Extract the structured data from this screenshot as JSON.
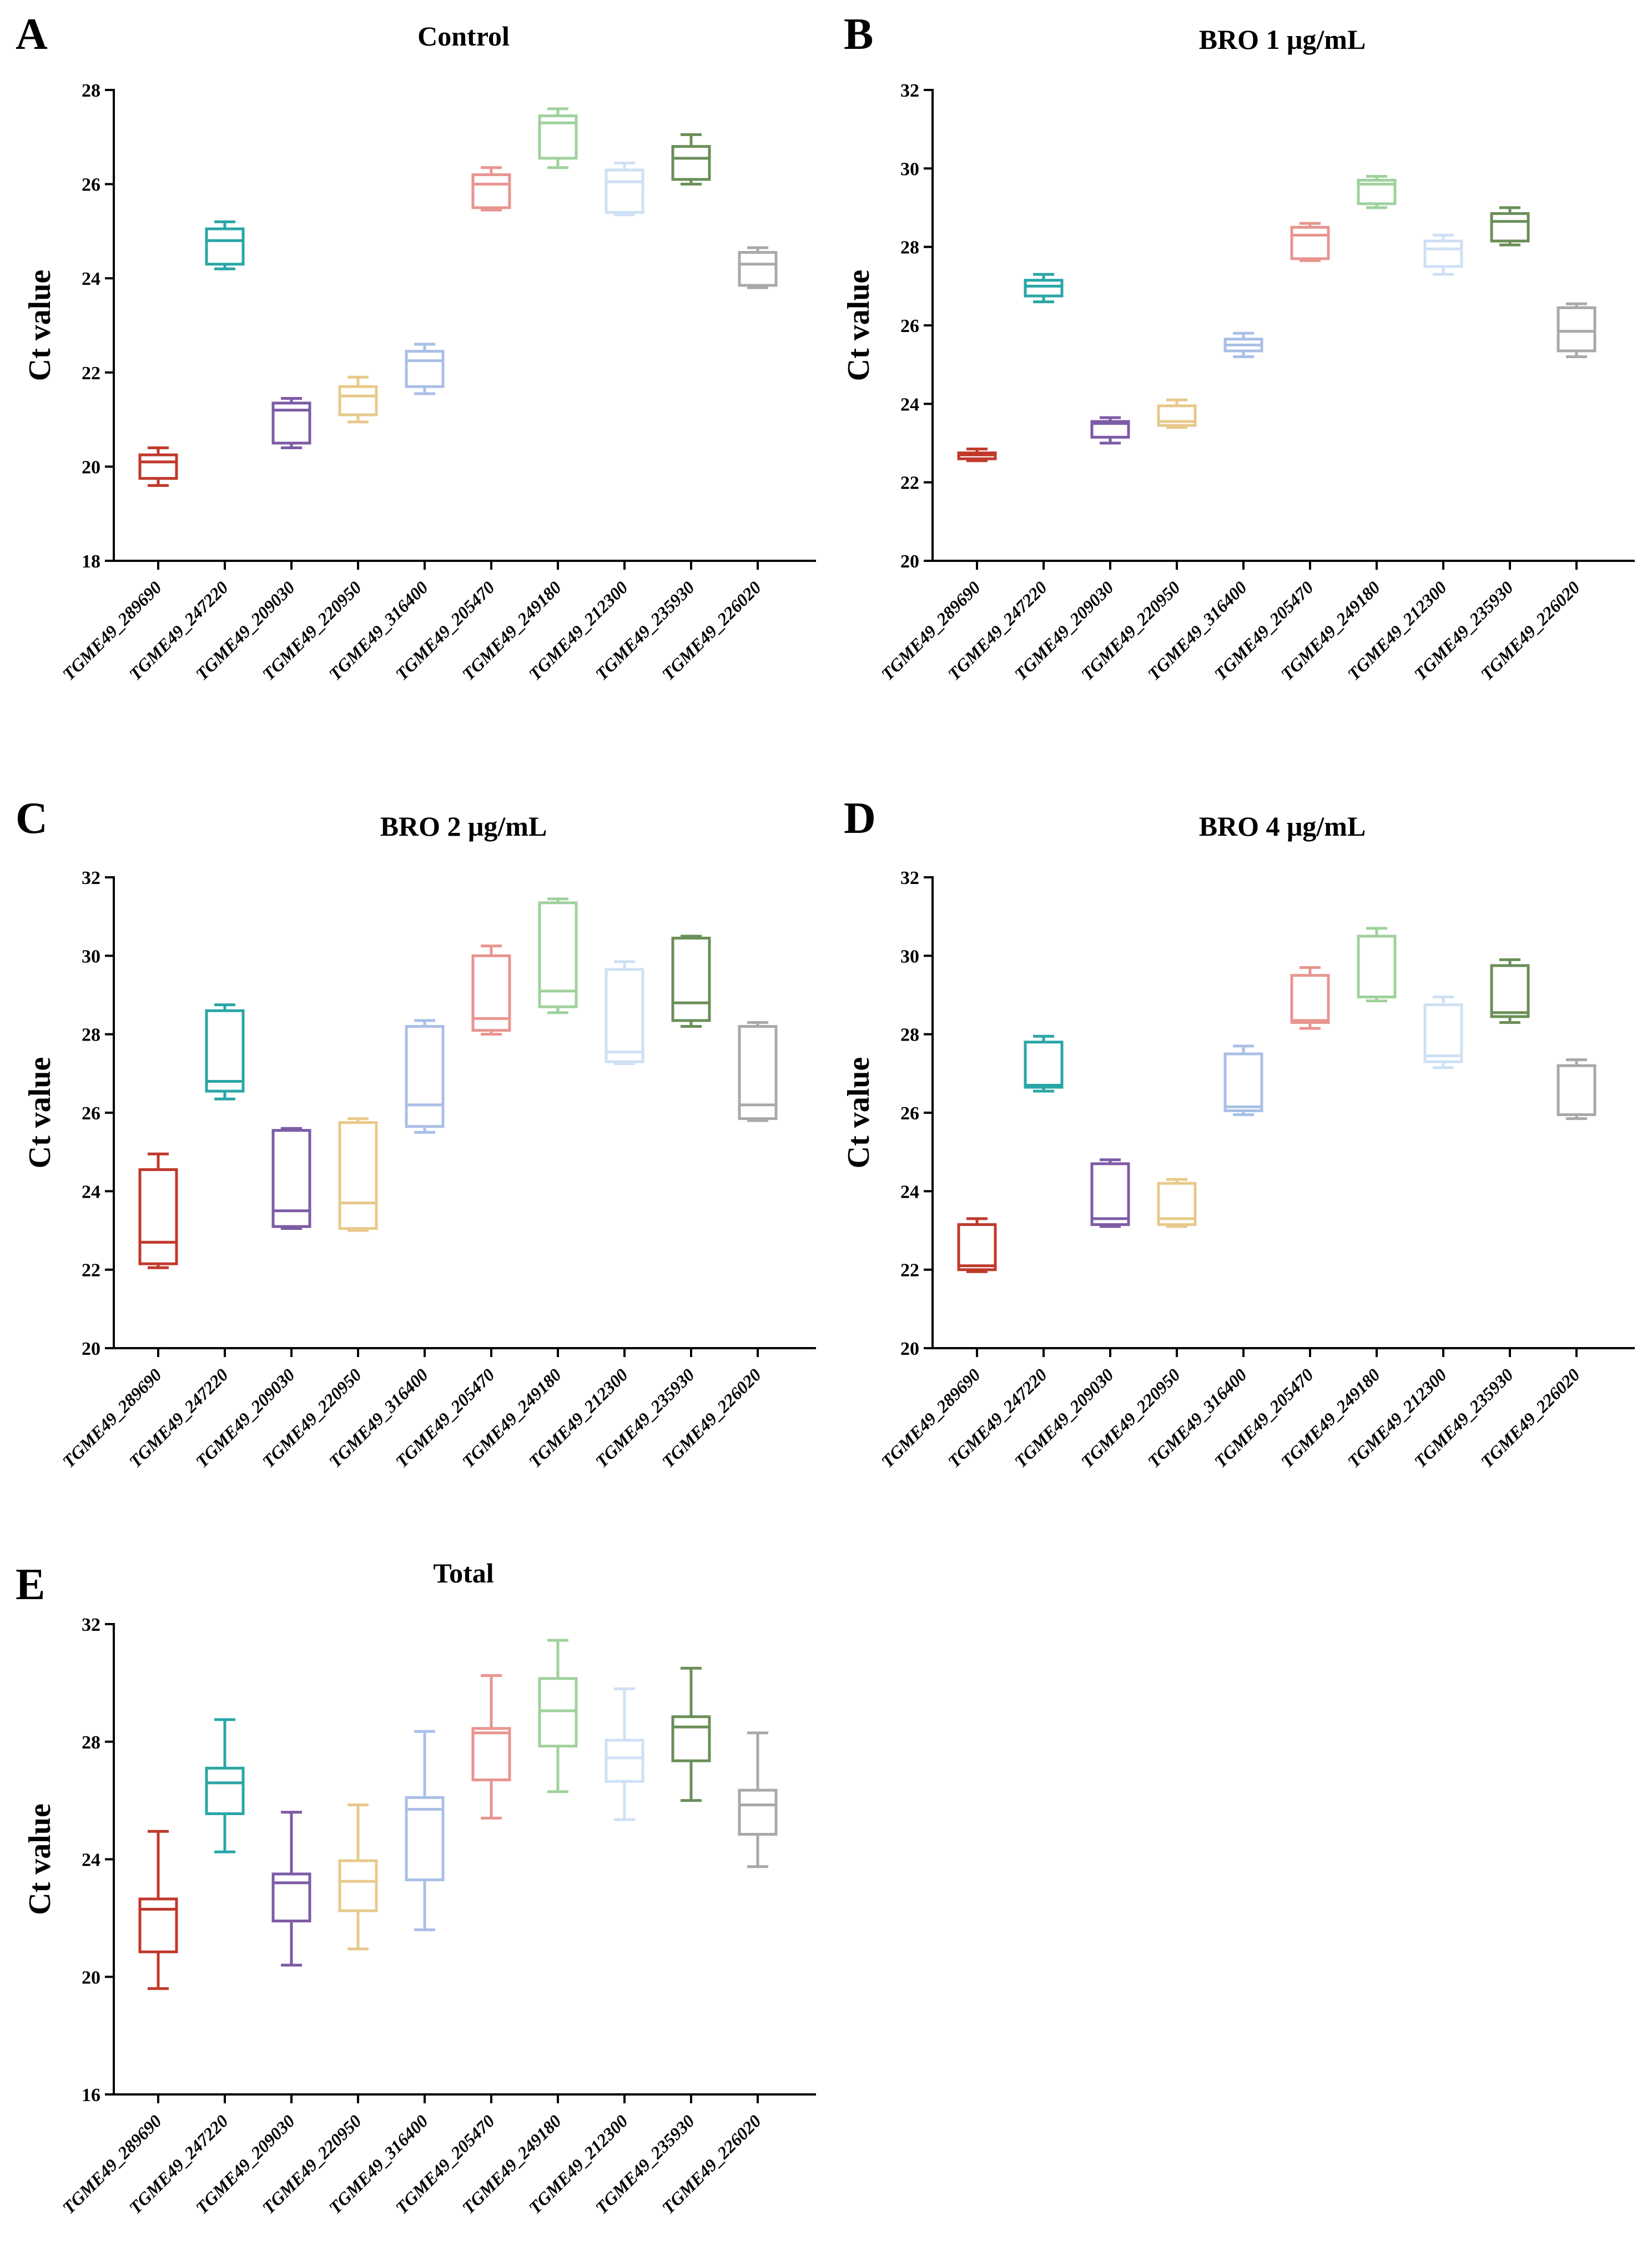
{
  "figure": {
    "categories": [
      "TGME49_289690",
      "TGME49_247220",
      "TGME49_209030",
      "TGME49_220950",
      "TGME49_316400",
      "TGME49_205470",
      "TGME49_249180",
      "TGME49_212300",
      "TGME49_235930",
      "TGME49_226020"
    ],
    "colors": [
      "#c0392b",
      "#2aa6a6",
      "#7d5ba6",
      "#e8c98b",
      "#a9bfe6",
      "#e8958f",
      "#9fd19c",
      "#cfe0f5",
      "#6a8f58",
      "#a9a9a9"
    ],
    "ylabel": "Ct value"
  },
  "chart_data": [
    {
      "type": "box",
      "letter": "A",
      "title": "Control",
      "ylabel": "Ct value",
      "ylim": [
        18,
        28
      ],
      "yticks": [
        18,
        20,
        22,
        24,
        26,
        28
      ],
      "boxes": [
        {
          "min": 19.6,
          "q1": 19.75,
          "median": 20.1,
          "q3": 20.25,
          "max": 20.4
        },
        {
          "min": 24.2,
          "q1": 24.3,
          "median": 24.8,
          "q3": 25.05,
          "max": 25.2
        },
        {
          "min": 20.4,
          "q1": 20.5,
          "median": 21.2,
          "q3": 21.35,
          "max": 21.45
        },
        {
          "min": 20.95,
          "q1": 21.1,
          "median": 21.5,
          "q3": 21.7,
          "max": 21.9
        },
        {
          "min": 21.55,
          "q1": 21.7,
          "median": 22.25,
          "q3": 22.45,
          "max": 22.6
        },
        {
          "min": 25.45,
          "q1": 25.5,
          "median": 26.0,
          "q3": 26.2,
          "max": 26.35
        },
        {
          "min": 26.35,
          "q1": 26.55,
          "median": 27.3,
          "q3": 27.45,
          "max": 27.6
        },
        {
          "min": 25.35,
          "q1": 25.4,
          "median": 26.05,
          "q3": 26.3,
          "max": 26.45
        },
        {
          "min": 26.0,
          "q1": 26.1,
          "median": 26.55,
          "q3": 26.8,
          "max": 27.05
        },
        {
          "min": 23.8,
          "q1": 23.85,
          "median": 24.3,
          "q3": 24.55,
          "max": 24.65
        }
      ]
    },
    {
      "type": "box",
      "letter": "B",
      "title": "BRO 1 μg/mL",
      "ylabel": "Ct value",
      "ylim": [
        20,
        32
      ],
      "yticks": [
        20,
        22,
        24,
        26,
        28,
        30,
        32
      ],
      "boxes": [
        {
          "min": 22.55,
          "q1": 22.6,
          "median": 22.7,
          "q3": 22.75,
          "max": 22.85
        },
        {
          "min": 26.6,
          "q1": 26.75,
          "median": 27.0,
          "q3": 27.15,
          "max": 27.3
        },
        {
          "min": 23.0,
          "q1": 23.15,
          "median": 23.5,
          "q3": 23.55,
          "max": 23.65
        },
        {
          "min": 23.4,
          "q1": 23.45,
          "median": 23.55,
          "q3": 23.95,
          "max": 24.1
        },
        {
          "min": 25.2,
          "q1": 25.35,
          "median": 25.5,
          "q3": 25.65,
          "max": 25.8
        },
        {
          "min": 27.65,
          "q1": 27.7,
          "median": 28.3,
          "q3": 28.5,
          "max": 28.6
        },
        {
          "min": 29.0,
          "q1": 29.1,
          "median": 29.6,
          "q3": 29.7,
          "max": 29.8
        },
        {
          "min": 27.3,
          "q1": 27.5,
          "median": 27.95,
          "q3": 28.15,
          "max": 28.3
        },
        {
          "min": 28.05,
          "q1": 28.15,
          "median": 28.65,
          "q3": 28.85,
          "max": 29.0
        },
        {
          "min": 25.2,
          "q1": 25.35,
          "median": 25.85,
          "q3": 26.45,
          "max": 26.55
        }
      ]
    },
    {
      "type": "box",
      "letter": "C",
      "title": "BRO 2 μg/mL",
      "ylabel": "Ct value",
      "ylim": [
        20,
        32
      ],
      "yticks": [
        20,
        22,
        24,
        26,
        28,
        30,
        32
      ],
      "boxes": [
        {
          "min": 22.05,
          "q1": 22.15,
          "median": 22.7,
          "q3": 24.55,
          "max": 24.95
        },
        {
          "min": 26.35,
          "q1": 26.55,
          "median": 26.8,
          "q3": 28.6,
          "max": 28.75
        },
        {
          "min": 23.05,
          "q1": 23.1,
          "median": 23.5,
          "q3": 25.55,
          "max": 25.6
        },
        {
          "min": 23.0,
          "q1": 23.05,
          "median": 23.7,
          "q3": 25.75,
          "max": 25.85
        },
        {
          "min": 25.5,
          "q1": 25.65,
          "median": 26.2,
          "q3": 28.2,
          "max": 28.35
        },
        {
          "min": 28.0,
          "q1": 28.1,
          "median": 28.4,
          "q3": 30.0,
          "max": 30.25
        },
        {
          "min": 28.55,
          "q1": 28.7,
          "median": 29.1,
          "q3": 31.35,
          "max": 31.45
        },
        {
          "min": 27.25,
          "q1": 27.3,
          "median": 27.55,
          "q3": 29.65,
          "max": 29.85
        },
        {
          "min": 28.2,
          "q1": 28.35,
          "median": 28.8,
          "q3": 30.45,
          "max": 30.5
        },
        {
          "min": 25.8,
          "q1": 25.85,
          "median": 26.2,
          "q3": 28.2,
          "max": 28.3
        }
      ]
    },
    {
      "type": "box",
      "letter": "D",
      "title": "BRO 4 μg/mL",
      "ylabel": "Ct value",
      "ylim": [
        20,
        32
      ],
      "yticks": [
        20,
        22,
        24,
        26,
        28,
        30,
        32
      ],
      "boxes": [
        {
          "min": 21.95,
          "q1": 22.0,
          "median": 22.1,
          "q3": 23.15,
          "max": 23.3
        },
        {
          "min": 26.55,
          "q1": 26.65,
          "median": 26.7,
          "q3": 27.8,
          "max": 27.95
        },
        {
          "min": 23.1,
          "q1": 23.15,
          "median": 23.3,
          "q3": 24.7,
          "max": 24.8
        },
        {
          "min": 23.1,
          "q1": 23.15,
          "median": 23.3,
          "q3": 24.2,
          "max": 24.3
        },
        {
          "min": 25.95,
          "q1": 26.05,
          "median": 26.15,
          "q3": 27.5,
          "max": 27.7
        },
        {
          "min": 28.15,
          "q1": 28.3,
          "median": 28.35,
          "q3": 29.5,
          "max": 29.7
        },
        {
          "min": 28.85,
          "q1": 28.95,
          "median": 28.95,
          "q3": 30.5,
          "max": 30.7
        },
        {
          "min": 27.15,
          "q1": 27.3,
          "median": 27.45,
          "q3": 28.75,
          "max": 28.95
        },
        {
          "min": 28.3,
          "q1": 28.45,
          "median": 28.55,
          "q3": 29.75,
          "max": 29.9
        },
        {
          "min": 25.85,
          "q1": 25.95,
          "median": 25.95,
          "q3": 27.2,
          "max": 27.35
        }
      ]
    },
    {
      "type": "box",
      "letter": "E",
      "title": "Total",
      "ylabel": "Ct value",
      "ylim": [
        16,
        32
      ],
      "yticks": [
        16,
        20,
        24,
        28,
        32
      ],
      "boxes": [
        {
          "min": 19.6,
          "q1": 20.85,
          "median": 22.3,
          "q3": 22.65,
          "max": 24.95
        },
        {
          "min": 24.25,
          "q1": 25.55,
          "median": 26.6,
          "q3": 27.1,
          "max": 28.75
        },
        {
          "min": 20.4,
          "q1": 21.9,
          "median": 23.2,
          "q3": 23.5,
          "max": 25.6
        },
        {
          "min": 20.95,
          "q1": 22.25,
          "median": 23.25,
          "q3": 23.95,
          "max": 25.85
        },
        {
          "min": 21.6,
          "q1": 23.3,
          "median": 25.7,
          "q3": 26.1,
          "max": 28.35
        },
        {
          "min": 25.4,
          "q1": 26.7,
          "median": 28.3,
          "q3": 28.45,
          "max": 30.25
        },
        {
          "min": 26.3,
          "q1": 27.85,
          "median": 29.05,
          "q3": 30.15,
          "max": 31.45
        },
        {
          "min": 25.35,
          "q1": 26.65,
          "median": 27.45,
          "q3": 28.05,
          "max": 29.8
        },
        {
          "min": 26.0,
          "q1": 27.35,
          "median": 28.5,
          "q3": 28.85,
          "max": 30.5
        },
        {
          "min": 23.75,
          "q1": 24.85,
          "median": 25.85,
          "q3": 26.35,
          "max": 28.3
        }
      ]
    }
  ]
}
